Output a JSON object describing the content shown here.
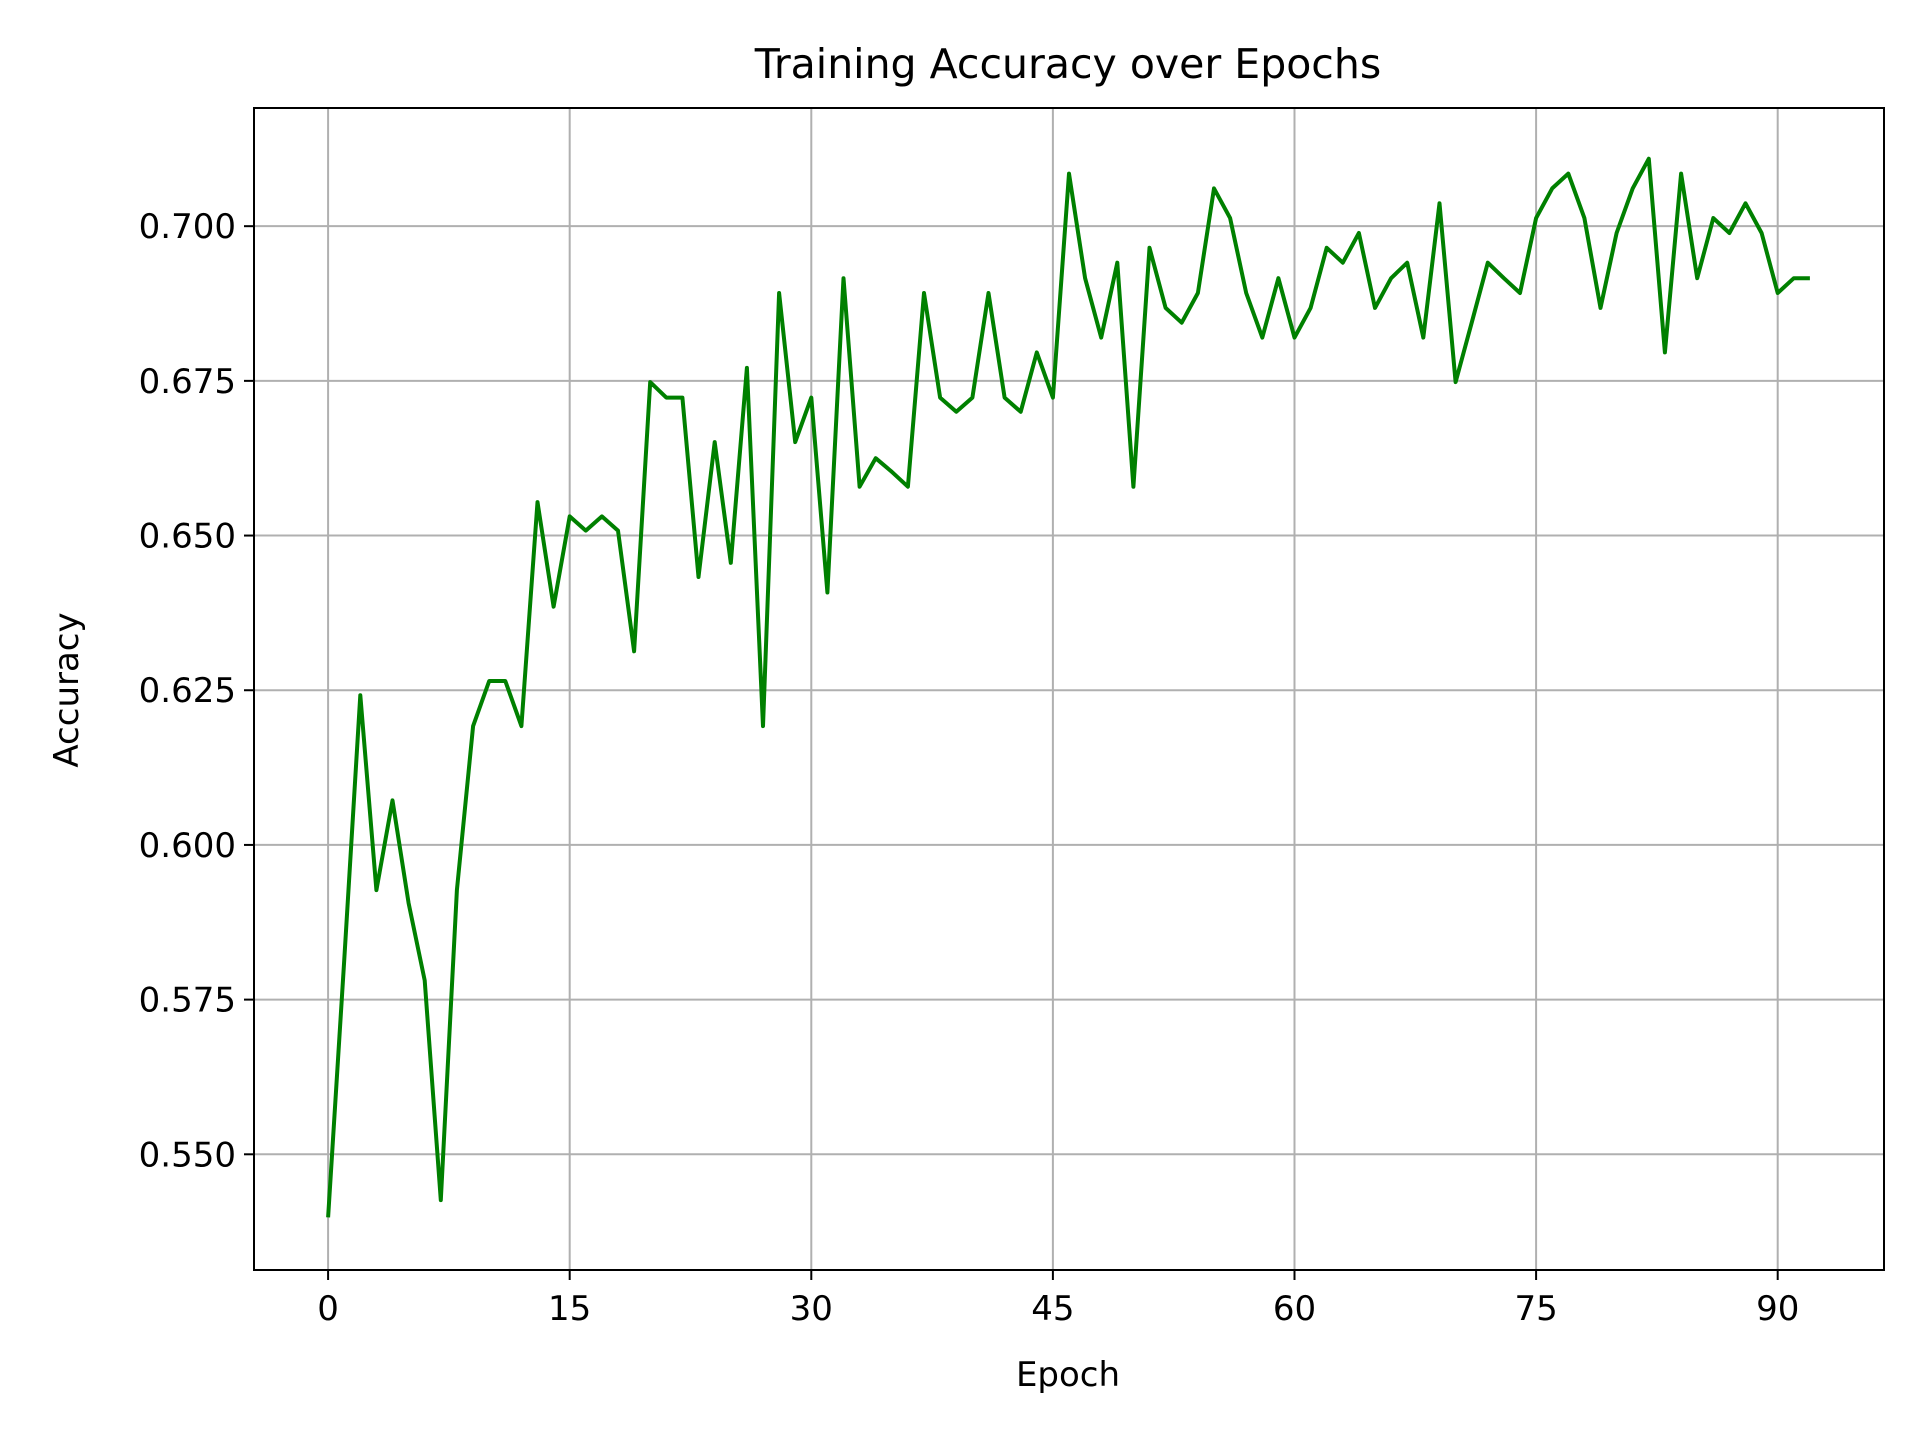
{
  "chart_data": {
    "type": "line",
    "title": "Training Accuracy over Epochs",
    "xlabel": "Epoch",
    "ylabel": "Accuracy",
    "xlim": [
      -4.6,
      96.6
    ],
    "ylim": [
      0.5313,
      0.7191
    ],
    "xticks": [
      0,
      15,
      30,
      45,
      60,
      75,
      90
    ],
    "yticks": [
      0.55,
      0.575,
      0.6,
      0.625,
      0.65,
      0.675,
      0.7
    ],
    "ytick_labels": [
      "0.550",
      "0.575",
      "0.600",
      "0.625",
      "0.650",
      "0.675",
      "0.700"
    ],
    "grid": true,
    "legend": "none",
    "series": [
      {
        "color": "#008000",
        "x": [
          0,
          1,
          2,
          3,
          4,
          5,
          6,
          7,
          8,
          9,
          10,
          11,
          12,
          13,
          14,
          15,
          16,
          17,
          18,
          19,
          20,
          21,
          22,
          23,
          24,
          25,
          26,
          27,
          28,
          29,
          30,
          31,
          32,
          33,
          34,
          35,
          36,
          37,
          38,
          39,
          40,
          41,
          42,
          43,
          44,
          45,
          46,
          47,
          48,
          49,
          50,
          51,
          52,
          53,
          54,
          55,
          56,
          57,
          58,
          59,
          60,
          61,
          62,
          63,
          64,
          65,
          66,
          67,
          68,
          69,
          70,
          71,
          72,
          73,
          74,
          75,
          76,
          77,
          78,
          79,
          80,
          81,
          82,
          83,
          84,
          85,
          86,
          87,
          88,
          89,
          90,
          91,
          92
        ],
        "values": [
          0.5398,
          0.5813,
          0.6242,
          0.5927,
          0.6072,
          0.5906,
          0.5781,
          0.5426,
          0.5927,
          0.6192,
          0.6265,
          0.6265,
          0.6192,
          0.6554,
          0.6385,
          0.6531,
          0.6508,
          0.6531,
          0.6508,
          0.6313,
          0.6748,
          0.6723,
          0.6723,
          0.6433,
          0.6651,
          0.6456,
          0.6771,
          0.6192,
          0.6892,
          0.6651,
          0.6723,
          0.6408,
          0.6916,
          0.6579,
          0.6625,
          0.6603,
          0.6579,
          0.6892,
          0.6723,
          0.67,
          0.6723,
          0.6892,
          0.6723,
          0.67,
          0.6796,
          0.6723,
          0.7085,
          0.6916,
          0.682,
          0.6941,
          0.6579,
          0.6965,
          0.6868,
          0.6844,
          0.6892,
          0.7061,
          0.7013,
          0.6892,
          0.682,
          0.6916,
          0.682,
          0.6868,
          0.6965,
          0.6941,
          0.6989,
          0.6868,
          0.6916,
          0.6941,
          0.682,
          0.7037,
          0.6748,
          0.6844,
          0.6941,
          0.6916,
          0.6892,
          0.7013,
          0.7061,
          0.7085,
          0.7013,
          0.6868,
          0.6989,
          0.7061,
          0.7109,
          0.6796,
          0.7085,
          0.6916,
          0.7013,
          0.6989,
          0.7037,
          0.6989,
          0.6892,
          0.6916,
          0.6916
        ]
      }
    ]
  }
}
